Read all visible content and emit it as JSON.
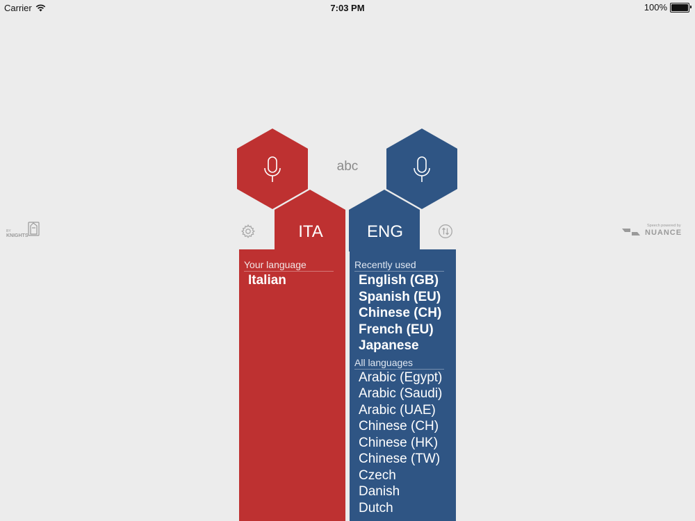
{
  "status_bar": {
    "carrier": "Carrier",
    "time": "7:03 PM",
    "battery": "100%",
    "battery_level": 1.0
  },
  "colors": {
    "source": "#be3131",
    "target": "#2f5584",
    "background": "#ececec"
  },
  "icons": {
    "left_mic": "microphone-icon",
    "right_mic": "microphone-icon",
    "settings": "gear-icon",
    "swap": "swap-arrows-icon",
    "left_logo": "knights-logo",
    "right_logo": "nuance-logo"
  },
  "source": {
    "code": "ITA",
    "section_label": "Your language",
    "languages": [
      "Italian"
    ]
  },
  "target": {
    "code": "ENG",
    "recent_label": "Recently used",
    "recent": [
      "English (GB)",
      "Spanish (EU)",
      "Chinese (CH)",
      "French (EU)",
      "Japanese"
    ],
    "all_label": "All languages",
    "all": [
      "Arabic (Egypt)",
      "Arabic (Saudi)",
      "Arabic (UAE)",
      "Chinese (CH)",
      "Chinese (HK)",
      "Chinese (TW)",
      "Czech",
      "Danish",
      "Dutch"
    ]
  },
  "text_mode_label": "abc",
  "logos": {
    "left_small": "BY",
    "left_main": "KNIGHTS",
    "right_small": "Speech powered by",
    "right_main": "NUANCE"
  }
}
